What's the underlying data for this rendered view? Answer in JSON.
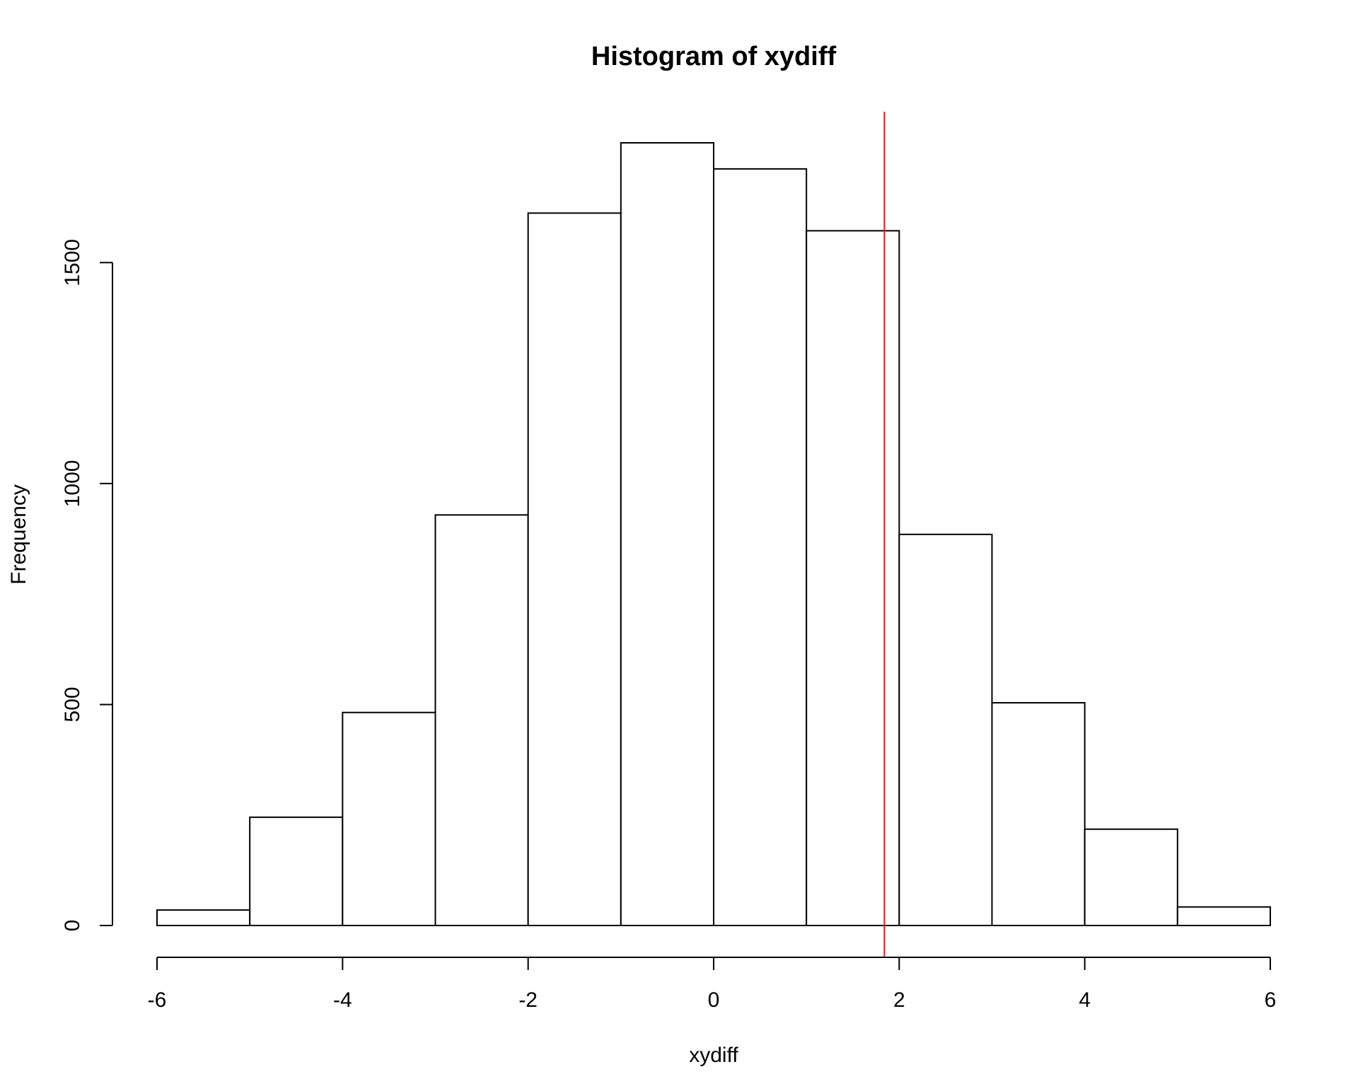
{
  "chart_data": {
    "type": "bar",
    "subtype": "histogram",
    "title": "Histogram of xydiff",
    "xlabel": "xydiff",
    "ylabel": "Frequency",
    "bins": [
      {
        "start": -6,
        "end": -5,
        "count": 35
      },
      {
        "start": -5,
        "end": -4,
        "count": 245
      },
      {
        "start": -4,
        "end": -3,
        "count": 482
      },
      {
        "start": -3,
        "end": -2,
        "count": 929
      },
      {
        "start": -2,
        "end": -1,
        "count": 1612
      },
      {
        "start": -1,
        "end": 0,
        "count": 1771
      },
      {
        "start": 0,
        "end": 1,
        "count": 1712
      },
      {
        "start": 1,
        "end": 2,
        "count": 1572
      },
      {
        "start": 2,
        "end": 3,
        "count": 885
      },
      {
        "start": 3,
        "end": 4,
        "count": 504
      },
      {
        "start": 4,
        "end": 5,
        "count": 218
      },
      {
        "start": 5,
        "end": 6,
        "count": 42
      }
    ],
    "xlim": [
      -6,
      6
    ],
    "ylim": [
      0,
      1771
    ],
    "x_ticks": [
      -6,
      -4,
      -2,
      0,
      2,
      4,
      6
    ],
    "x_tick_labels": [
      "-6",
      "-4",
      "-2",
      "0",
      "2",
      "4",
      "6"
    ],
    "y_ticks": [
      0,
      500,
      1000,
      1500
    ],
    "y_tick_labels": [
      "0",
      "500",
      "1000",
      "1500"
    ],
    "reference_line": {
      "orientation": "vertical",
      "x": 1.84,
      "color": "#e41a1c"
    },
    "bar_fill": "#ffffff",
    "bar_stroke": "#000000",
    "grid": false
  }
}
